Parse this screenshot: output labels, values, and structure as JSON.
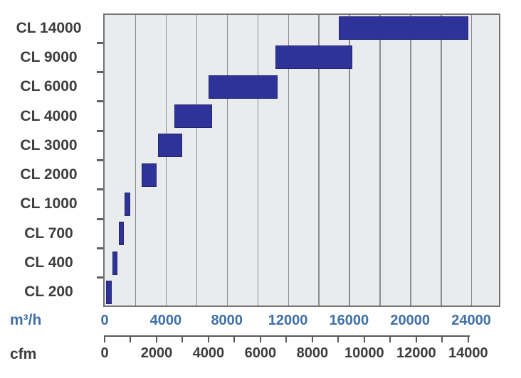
{
  "chart_data": {
    "type": "bar",
    "subtype": "horizontal-range-bars",
    "title": "",
    "legend": "none",
    "grid": "vertical",
    "categories": [
      "CL 14000",
      "CL 9000",
      "CL 6000",
      "CL 4000",
      "CL 3000",
      "CL 2000",
      "CL 1000",
      "CL 700",
      "CL 400",
      "CL 200"
    ],
    "series": [
      {
        "name": "airflow-operating-range",
        "unit": "m³/h",
        "ranges": [
          [
            15350,
            23800
          ],
          [
            11200,
            16200
          ],
          [
            6800,
            11300
          ],
          [
            4550,
            7050
          ],
          [
            3500,
            5100
          ],
          [
            2400,
            3400
          ],
          [
            1300,
            1700
          ],
          [
            950,
            1250
          ],
          [
            500,
            850
          ],
          [
            100,
            450
          ]
        ]
      }
    ],
    "x_axis_primary": {
      "label": "m³/h",
      "tick_labels": [
        "0",
        "4000",
        "8000",
        "12000",
        "16000",
        "20000",
        "24000"
      ],
      "tick_values": [
        0,
        4000,
        8000,
        12000,
        16000,
        20000,
        24000
      ],
      "gridline_step": 2000,
      "range": [
        0,
        26000
      ]
    },
    "x_axis_secondary": {
      "label": "cfm",
      "tick_labels": [
        "0",
        "2000",
        "4000",
        "6000",
        "8000",
        "10000",
        "12000",
        "14000"
      ],
      "tick_values": [
        0,
        2000,
        4000,
        6000,
        8000,
        10000,
        12000,
        14000
      ],
      "minor_tick_step": 1000,
      "range": [
        0,
        14000
      ],
      "m3h_per_cfm": 1.7
    },
    "colors": {
      "bar": "#2e3399",
      "bar_border": "#24276f",
      "plot_bg": "#e9ebec",
      "gridline": "#898b8d",
      "plot_border": "#717375",
      "axis_text_primary": "#3f70a9",
      "axis_text_secondary": "#3b3d3f",
      "category_text": "#3b3d3f",
      "ruler": "#58595b"
    }
  }
}
